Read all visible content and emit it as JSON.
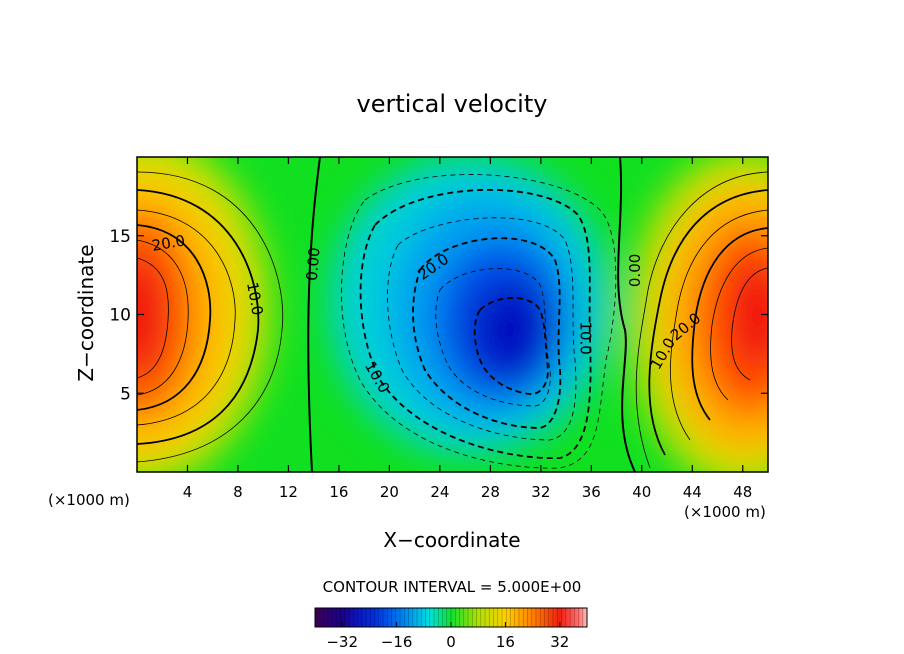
{
  "chart_data": {
    "type": "heatmap",
    "title": "vertical velocity",
    "xlabel": "X−coordinate",
    "ylabel": "Z−coordinate",
    "x_unit_left": "(×1000 m)",
    "x_unit_right": "(×1000 m)",
    "xlim": [
      0,
      50
    ],
    "ylim": [
      0,
      20
    ],
    "x_ticks": [
      4,
      8,
      12,
      16,
      20,
      24,
      28,
      32,
      36,
      40,
      44,
      48
    ],
    "y_ticks": [
      5,
      10,
      15
    ],
    "contour_interval_text": "CONTOUR INTERVAL = 5.000E+00",
    "contour_interval": 5.0,
    "colorbar": {
      "range": [
        -40,
        40
      ],
      "ticks": [
        -32,
        -16,
        0,
        16,
        32
      ],
      "tick_labels": [
        "−32",
        "−16",
        "0",
        "16",
        "32"
      ]
    },
    "field_centers": [
      {
        "x": 0,
        "z": 9.5,
        "value": 36,
        "note": "updraft left edge"
      },
      {
        "x": 30,
        "z": 9,
        "value": -32,
        "note": "downdraft core"
      },
      {
        "x": 50,
        "z": 9.5,
        "value": 34,
        "note": "updraft right edge"
      }
    ],
    "contour_labels": [
      {
        "text": "20.0",
        "x": 2.5,
        "z": 14.5
      },
      {
        "text": "10.0",
        "x": 9.3,
        "z": 11
      },
      {
        "text": "0.00",
        "x": 14,
        "z": 13.2
      },
      {
        "text": "20.0",
        "x": 23.5,
        "z": 13
      },
      {
        "text": "10.0",
        "x": 19,
        "z": 6
      },
      {
        "text": "10.0",
        "x": 35.5,
        "z": 8.5
      },
      {
        "text": "0.00",
        "x": 39.5,
        "z": 12.8
      },
      {
        "text": "10.0",
        "x": 41.7,
        "z": 7.5
      },
      {
        "text": "20.0",
        "x": 43.5,
        "z": 9.2
      }
    ]
  }
}
